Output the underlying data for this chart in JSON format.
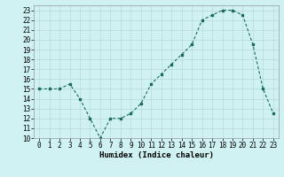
{
  "x_pts": [
    0,
    1,
    2,
    3,
    4,
    5,
    6,
    7,
    8,
    9,
    10,
    11,
    12,
    13,
    14,
    15,
    16,
    17,
    18,
    19,
    20,
    21,
    22,
    23
  ],
  "y_pts": [
    15,
    15,
    15,
    15.5,
    14,
    12,
    10,
    12,
    12,
    12.5,
    13.5,
    15.5,
    16.5,
    17.5,
    18.5,
    19.5,
    22,
    22.5,
    23,
    23,
    22.5,
    19.5,
    15,
    12.5
  ],
  "xlabel": "Humidex (Indice chaleur)",
  "xlim": [
    -0.5,
    23.5
  ],
  "ylim": [
    10,
    23.5
  ],
  "bg_color": "#cff1f1",
  "line_color": "#1a6b5a",
  "grid_color": "#b8dada",
  "yticks": [
    10,
    11,
    12,
    13,
    14,
    15,
    16,
    17,
    18,
    19,
    20,
    21,
    22,
    23
  ],
  "xticks": [
    0,
    1,
    2,
    3,
    4,
    5,
    6,
    7,
    8,
    9,
    10,
    11,
    12,
    13,
    14,
    15,
    16,
    17,
    18,
    19,
    20,
    21,
    22,
    23
  ],
  "tick_fontsize": 5.5,
  "xlabel_fontsize": 6.5
}
